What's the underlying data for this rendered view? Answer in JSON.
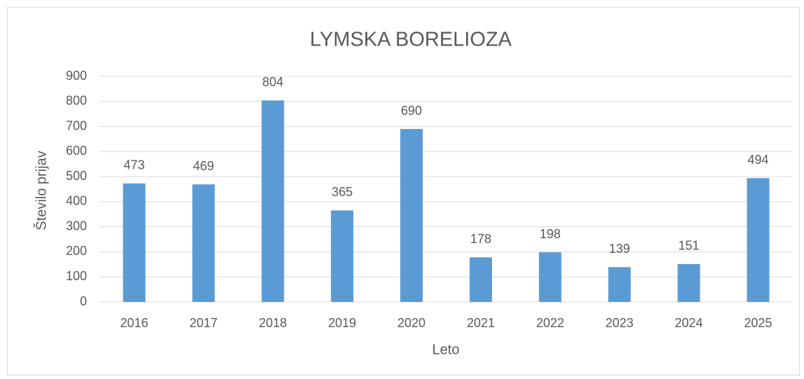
{
  "chart_data": {
    "type": "bar",
    "title": "LYMSKA BORELIOZA",
    "x_label": "Leto",
    "y_label": "Število prijav",
    "categories": [
      "2016",
      "2017",
      "2018",
      "2019",
      "2020",
      "2021",
      "2022",
      "2023",
      "2024",
      "2025"
    ],
    "values": [
      473,
      469,
      804,
      365,
      690,
      178,
      198,
      139,
      151,
      494
    ],
    "color": "#5b9bd5",
    "ylim": [
      0,
      900
    ],
    "yticks": [
      0,
      100,
      200,
      300,
      400,
      500,
      600,
      700,
      800,
      900
    ],
    "grid": true
  }
}
